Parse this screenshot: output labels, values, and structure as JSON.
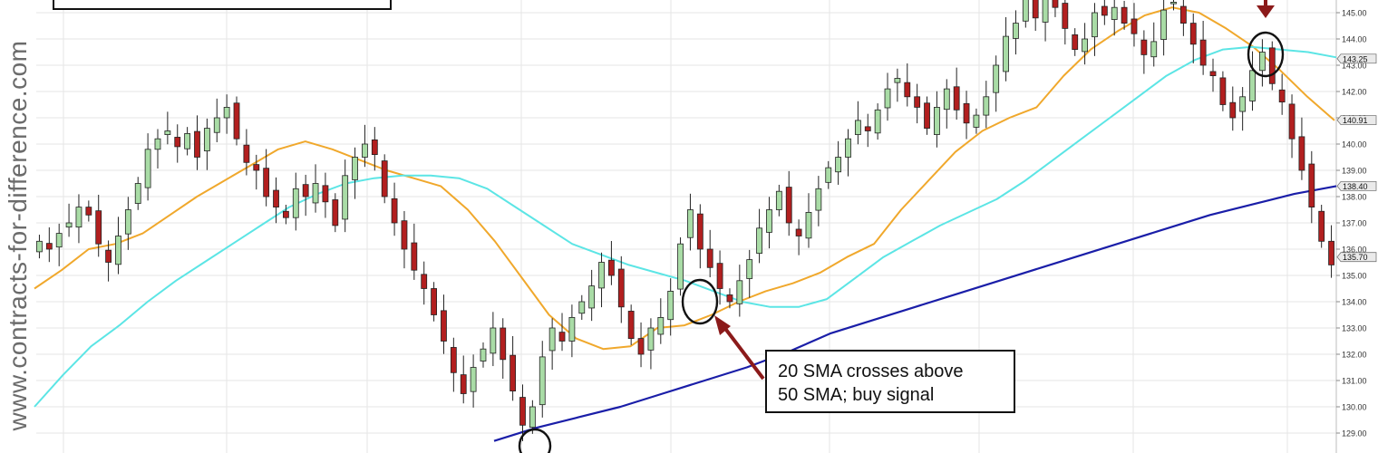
{
  "watermark": "www.contracts-for-difference.com",
  "annotation": {
    "line1": "20 SMA crosses above",
    "line2": "50 SMA; buy signal"
  },
  "colors": {
    "up_candle": "#a9dca6",
    "down_candle": "#b21f1f",
    "sma20": "#f0a82c",
    "sma50": "#5ce5e5",
    "sma200": "#1a1ea8",
    "arrow": "#8b1a1a",
    "grid": "#e6e6e6"
  },
  "chart_data": {
    "type": "candlestick",
    "y_axis_ticks": [
      "145.00",
      "144.00",
      "143.00",
      "142.00",
      "141.00",
      "140.00",
      "139.00",
      "138.00",
      "137.00",
      "136.00",
      "135.00",
      "134.00",
      "133.00",
      "132.00",
      "131.00",
      "130.00",
      "129.00"
    ],
    "ylim": [
      128.5,
      145.5
    ],
    "price_labels": [
      {
        "label": "143.25",
        "value": 143.25
      },
      {
        "label": "140.91",
        "value": 140.91
      },
      {
        "label": "138.40",
        "value": 138.4
      },
      {
        "label": "135.70",
        "value": 135.7
      }
    ],
    "series": [
      {
        "name": "20 SMA",
        "color": "#f0a82c",
        "values": [
          134.5,
          135.2,
          136.0,
          136.2,
          136.6,
          137.3,
          138.0,
          138.6,
          139.2,
          139.8,
          140.1,
          139.8,
          139.4,
          139.0,
          138.7,
          138.4,
          137.5,
          136.3,
          134.9,
          133.5,
          132.6,
          132.2,
          132.3,
          133.0,
          133.1,
          133.5,
          134.0,
          134.4,
          134.7,
          135.1,
          135.7,
          136.2,
          137.5,
          138.6,
          139.7,
          140.5,
          141.0,
          141.4,
          142.6,
          143.6,
          144.3,
          144.9,
          145.2,
          145.0,
          144.4,
          143.7,
          142.8,
          141.8,
          140.9
        ]
      },
      {
        "name": "50 SMA",
        "color": "#5ce5e5",
        "values": [
          130.0,
          131.2,
          132.3,
          133.1,
          134.0,
          134.8,
          135.5,
          136.2,
          136.9,
          137.6,
          138.1,
          138.5,
          138.7,
          138.8,
          138.8,
          138.7,
          138.3,
          137.6,
          136.9,
          136.2,
          135.8,
          135.4,
          135.1,
          134.8,
          134.4,
          134.0,
          133.8,
          133.8,
          134.1,
          134.9,
          135.7,
          136.3,
          136.9,
          137.4,
          137.9,
          138.6,
          139.4,
          140.2,
          141.0,
          141.8,
          142.6,
          143.2,
          143.6,
          143.7,
          143.6,
          143.5,
          143.3
        ]
      },
      {
        "name": "200 SMA",
        "color": "#1a1ea8",
        "values": [
          128.7,
          129.2,
          129.6,
          130.0,
          130.5,
          131.0,
          131.5,
          132.1,
          132.8,
          133.3,
          133.8,
          134.3,
          134.8,
          135.3,
          135.8,
          136.3,
          136.8,
          137.3,
          137.7,
          138.1,
          138.4
        ]
      }
    ]
  }
}
